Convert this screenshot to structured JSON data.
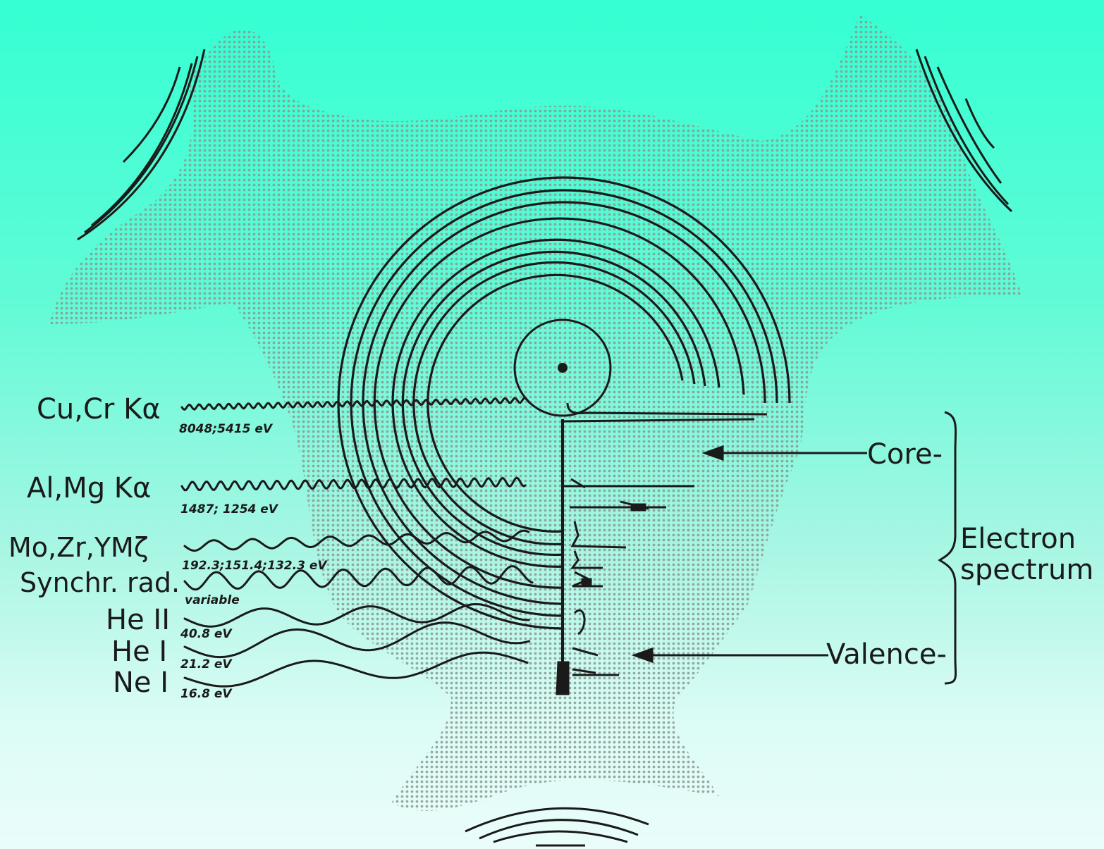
{
  "sources": [
    {
      "id": "cu",
      "label": "Cu,Cr Kα",
      "energy": "8048;5415 eV"
    },
    {
      "id": "al",
      "label": "Al,Mg Kα",
      "energy": "1487; 1254 eV"
    },
    {
      "id": "mo",
      "label": "Mo,Zr,YMζ",
      "energy": "192.3;151.4;132.3 eV"
    },
    {
      "id": "sy",
      "label": "Synchr. rad.",
      "energy": "variable"
    },
    {
      "id": "h2",
      "label": "He II",
      "energy": "40.8 eV"
    },
    {
      "id": "h1",
      "label": "He I",
      "energy": "21.2 eV"
    },
    {
      "id": "ne",
      "label": "Ne I",
      "energy": "16.8 eV"
    }
  ],
  "spectrum": {
    "core_label": "Core-",
    "valence_label": "Valence-",
    "bracket_line1": "Electron",
    "bracket_line2": "spectrum"
  },
  "colors": {
    "background_top": "#35ffd3",
    "background_bottom": "#eafdfa",
    "ink": "#1a1a1a",
    "cloud_dots": "#8a9a92"
  }
}
